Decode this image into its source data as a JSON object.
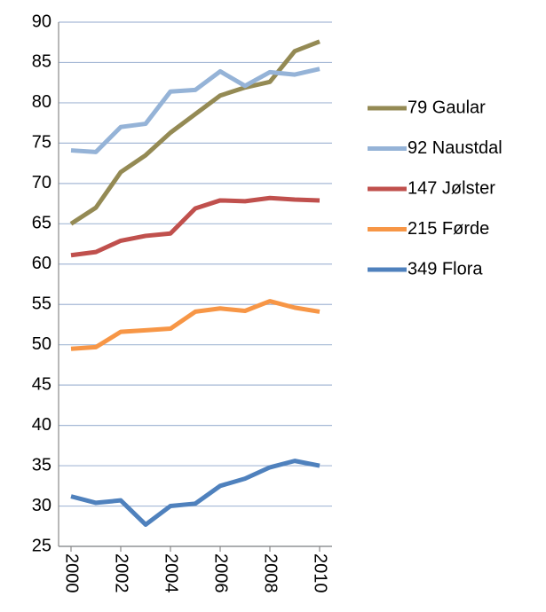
{
  "chart_data": {
    "type": "line",
    "x": [
      2000,
      2001,
      2002,
      2003,
      2004,
      2005,
      2006,
      2007,
      2008,
      2009,
      2010
    ],
    "series": [
      {
        "name": "79 Gaular",
        "color": "#948a54",
        "values": [
          65.0,
          67.0,
          71.4,
          73.5,
          76.3,
          78.6,
          80.9,
          81.9,
          82.6,
          86.4,
          87.6
        ]
      },
      {
        "name": "92 Naustdal",
        "color": "#95b3d7",
        "values": [
          74.1,
          73.9,
          77.0,
          77.4,
          81.4,
          81.6,
          83.9,
          82.1,
          83.8,
          83.5,
          84.2
        ]
      },
      {
        "name": "147 Jølster",
        "color": "#c0504d",
        "values": [
          61.1,
          61.5,
          62.9,
          63.5,
          63.8,
          66.9,
          67.9,
          67.8,
          68.2,
          68.0,
          67.9
        ]
      },
      {
        "name": "215 Førde",
        "color": "#f79646",
        "values": [
          49.5,
          49.7,
          51.6,
          51.8,
          52.0,
          54.1,
          54.5,
          54.2,
          55.4,
          54.6,
          54.1
        ]
      },
      {
        "name": "349 Flora",
        "color": "#4f81bd",
        "values": [
          31.2,
          30.4,
          30.7,
          27.7,
          30.0,
          30.3,
          32.5,
          33.4,
          34.8,
          35.6,
          35.0
        ]
      }
    ],
    "xlim": [
      1999.5,
      2010.5
    ],
    "xticks": [
      2000,
      2002,
      2004,
      2006,
      2008,
      2010
    ],
    "ylim": [
      25,
      90
    ],
    "yticks": [
      25,
      30,
      35,
      40,
      45,
      50,
      55,
      60,
      65,
      70,
      75,
      80,
      85,
      90
    ],
    "grid": true,
    "legend": "right"
  }
}
